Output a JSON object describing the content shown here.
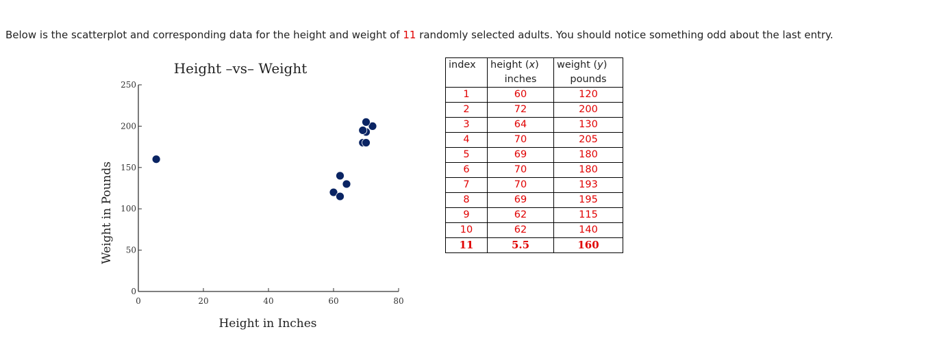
{
  "intro": {
    "before": "Below is the scatterplot and corresponding data for the height and weight of ",
    "count": "11",
    "after": " randomly selected adults. You should notice something odd about the last entry."
  },
  "table": {
    "headers": {
      "index": "index",
      "height": "height (x)",
      "height_var": "x",
      "height_unit": "inches",
      "weight": "weight (y)",
      "weight_var": "y",
      "weight_unit": "pounds"
    },
    "rows": [
      {
        "index": "1",
        "height": "60",
        "weight": "120"
      },
      {
        "index": "2",
        "height": "72",
        "weight": "200"
      },
      {
        "index": "3",
        "height": "64",
        "weight": "130"
      },
      {
        "index": "4",
        "height": "70",
        "weight": "205"
      },
      {
        "index": "5",
        "height": "69",
        "weight": "180"
      },
      {
        "index": "6",
        "height": "70",
        "weight": "180"
      },
      {
        "index": "7",
        "height": "70",
        "weight": "193"
      },
      {
        "index": "8",
        "height": "69",
        "weight": "195"
      },
      {
        "index": "9",
        "height": "62",
        "weight": "115"
      },
      {
        "index": "10",
        "height": "62",
        "weight": "140"
      },
      {
        "index": "11",
        "height": "5.5",
        "weight": "160"
      }
    ]
  },
  "colors": {
    "accent_red": "#e00000",
    "marker": "#0a2463"
  },
  "chart_data": {
    "type": "scatter",
    "title": "Height –vs– Weight",
    "xlabel": "Height in Inches",
    "ylabel": "Weight in Pounds",
    "xlim": [
      0,
      80
    ],
    "ylim": [
      0,
      250
    ],
    "xticks": [
      "0",
      "20",
      "40",
      "60",
      "80"
    ],
    "yticks": [
      "0",
      "50",
      "100",
      "150",
      "200",
      "250"
    ],
    "grid": false,
    "legend": null,
    "series": [
      {
        "name": "adults",
        "x": [
          60,
          72,
          64,
          70,
          69,
          70,
          70,
          69,
          62,
          62,
          5.5
        ],
        "y": [
          120,
          200,
          130,
          205,
          180,
          180,
          193,
          195,
          115,
          140,
          160
        ]
      }
    ]
  }
}
